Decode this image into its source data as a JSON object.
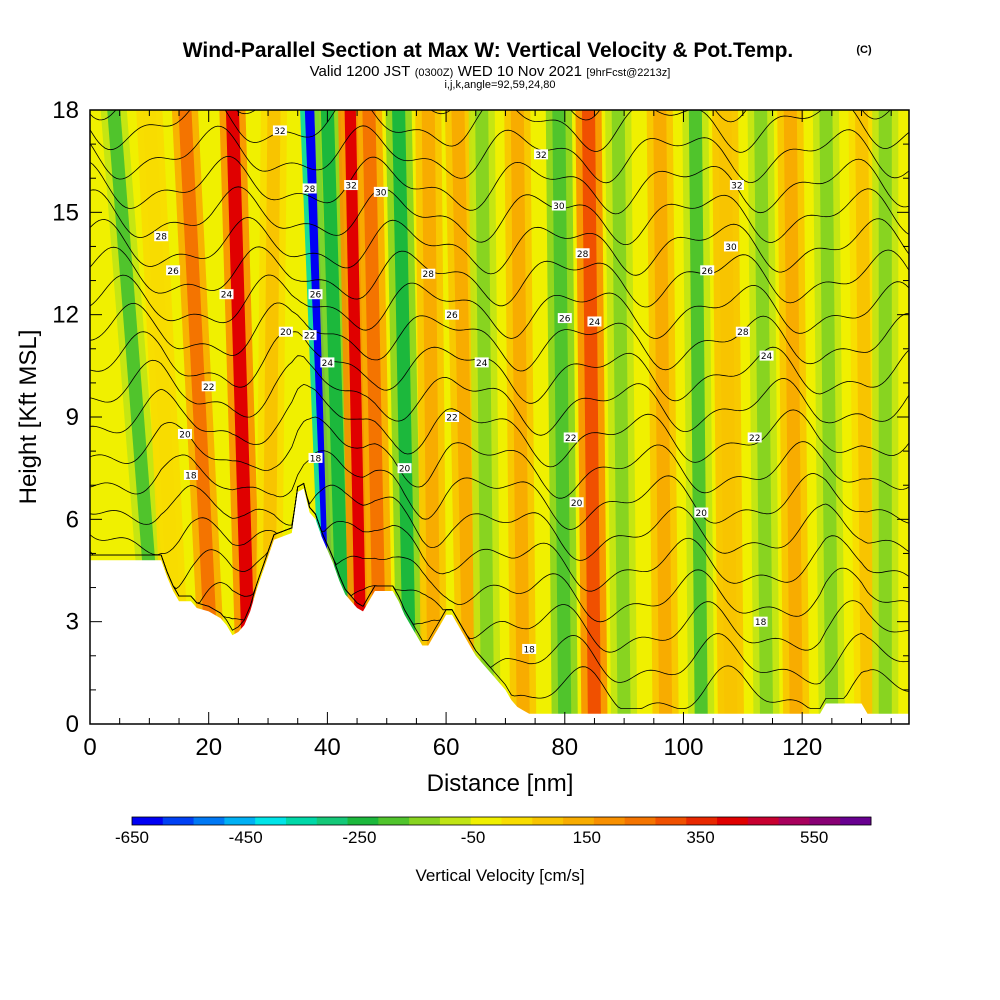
{
  "header": {
    "title": "Wind-Parallel Section at Max W: Vertical Velocity & Pot.Temp.",
    "copyright": "(C)",
    "valid_prefix": "Valid 1200 JST",
    "valid_utc": "(0300Z)",
    "valid_date": "WED 10 Nov 2021",
    "forecast": "[9hrFcst@2213z]",
    "indices": "i,j,k,angle=92,59,24,80"
  },
  "chart_data": {
    "type": "heatmap",
    "xlabel": "Distance [nm]",
    "ylabel": "Height [Kft MSL]",
    "xlim": [
      0,
      138
    ],
    "ylim": [
      0,
      18
    ],
    "x_ticks": [
      "0",
      "20",
      "40",
      "60",
      "80",
      "100",
      "120"
    ],
    "y_ticks": [
      "0",
      "3",
      "6",
      "9",
      "12",
      "15",
      "18"
    ],
    "colorbar": {
      "label": "Vertical Velocity [cm/s]",
      "tick_labels": [
        "-650",
        "-450",
        "-250",
        "-50",
        "150",
        "350",
        "550"
      ],
      "tick_values": [
        -650,
        -450,
        -250,
        -50,
        150,
        350,
        550
      ],
      "range": [
        -650,
        650
      ],
      "colors": [
        "#0000f4",
        "#0040f4",
        "#0078f4",
        "#00b0f4",
        "#00e4e8",
        "#00d8a8",
        "#14c878",
        "#1cb83c",
        "#50c42c",
        "#88d420",
        "#c0e414",
        "#f0f000",
        "#f8dc00",
        "#f8c400",
        "#f8ac00",
        "#f89000",
        "#f47400",
        "#f05000",
        "#e82800",
        "#e00000",
        "#c80030",
        "#a8005c",
        "#880074",
        "#680090"
      ]
    },
    "vertical_velocity_bands": [
      {
        "x_top": 4,
        "x_bottom": 12,
        "w": -180
      },
      {
        "x_top": 10,
        "x_bottom": 15,
        "w": 40
      },
      {
        "x_top": 16,
        "x_bottom": 21,
        "w": 260
      },
      {
        "x_top": 24,
        "x_bottom": 27,
        "w": 380
      },
      {
        "x_top": 31,
        "x_bottom": 30,
        "w": 80
      },
      {
        "x_top": 37,
        "x_bottom": 41,
        "w": -620
      },
      {
        "x_top": 40,
        "x_bottom": 43,
        "w": -250
      },
      {
        "x_top": 44,
        "x_bottom": 46,
        "w": 380
      },
      {
        "x_top": 47,
        "x_bottom": 49,
        "w": 260
      },
      {
        "x_top": 52,
        "x_bottom": 54,
        "w": -230
      },
      {
        "x_top": 57,
        "x_bottom": 58,
        "w": 140
      },
      {
        "x_top": 62,
        "x_bottom": 64,
        "w": 160
      },
      {
        "x_top": 66,
        "x_bottom": 67,
        "w": -140
      },
      {
        "x_top": 72,
        "x_bottom": 73,
        "w": 120
      },
      {
        "x_top": 79,
        "x_bottom": 80,
        "w": -200
      },
      {
        "x_top": 84,
        "x_bottom": 85,
        "w": 320
      },
      {
        "x_top": 89,
        "x_bottom": 90,
        "w": -110
      },
      {
        "x_top": 96,
        "x_bottom": 97,
        "w": 140
      },
      {
        "x_top": 102,
        "x_bottom": 103,
        "w": -170
      },
      {
        "x_top": 107,
        "x_bottom": 108,
        "w": 100
      },
      {
        "x_top": 113,
        "x_bottom": 114,
        "w": -160
      },
      {
        "x_top": 118,
        "x_bottom": 119,
        "w": 130
      },
      {
        "x_top": 124,
        "x_bottom": 125,
        "w": -130
      },
      {
        "x_top": 130,
        "x_bottom": 131,
        "w": 90
      },
      {
        "x_top": 134,
        "x_bottom": 134,
        "w": -120
      }
    ],
    "terrain": [
      [
        0,
        4.8
      ],
      [
        12,
        4.8
      ],
      [
        13,
        4.3
      ],
      [
        14,
        3.9
      ],
      [
        15,
        3.6
      ],
      [
        17,
        3.6
      ],
      [
        18,
        3.4
      ],
      [
        20,
        3.3
      ],
      [
        22,
        3.1
      ],
      [
        23,
        2.9
      ],
      [
        24,
        2.6
      ],
      [
        25,
        2.7
      ],
      [
        26,
        2.9
      ],
      [
        27,
        3.3
      ],
      [
        28,
        3.9
      ],
      [
        29,
        4.4
      ],
      [
        30,
        4.9
      ],
      [
        31,
        5.4
      ],
      [
        34,
        5.6
      ],
      [
        35,
        6.8
      ],
      [
        36,
        6.9
      ],
      [
        37,
        6.2
      ],
      [
        38,
        6.0
      ],
      [
        39,
        5.5
      ],
      [
        40,
        5.1
      ],
      [
        41,
        4.7
      ],
      [
        42,
        4.2
      ],
      [
        43,
        3.8
      ],
      [
        44,
        3.6
      ],
      [
        45,
        3.4
      ],
      [
        46,
        3.3
      ],
      [
        47,
        3.6
      ],
      [
        48,
        3.9
      ],
      [
        51,
        3.9
      ],
      [
        52,
        3.6
      ],
      [
        53,
        3.2
      ],
      [
        54,
        2.9
      ],
      [
        55,
        2.6
      ],
      [
        56,
        2.3
      ],
      [
        57,
        2.3
      ],
      [
        58,
        2.6
      ],
      [
        59,
        2.9
      ],
      [
        60,
        3.2
      ],
      [
        61,
        3.2
      ],
      [
        62,
        2.9
      ],
      [
        63,
        2.6
      ],
      [
        64,
        2.3
      ],
      [
        65,
        2.0
      ],
      [
        66,
        1.8
      ],
      [
        67,
        1.6
      ],
      [
        68,
        1.4
      ],
      [
        69,
        1.2
      ],
      [
        70,
        1.0
      ],
      [
        71,
        0.7
      ],
      [
        72,
        0.5
      ],
      [
        73,
        0.4
      ],
      [
        74,
        0.3
      ],
      [
        123,
        0.3
      ],
      [
        124,
        0.6
      ],
      [
        130,
        0.6
      ],
      [
        131,
        0.3
      ],
      [
        138,
        0.3
      ]
    ],
    "theta_levels": [
      18,
      20,
      22,
      24,
      26,
      28,
      30,
      32
    ],
    "theta_labels": [
      {
        "text": "32",
        "x": 32,
        "y": 17.4
      },
      {
        "text": "32",
        "x": 44,
        "y": 15.8
      },
      {
        "text": "30",
        "x": 49,
        "y": 15.6
      },
      {
        "text": "32",
        "x": 76,
        "y": 16.7
      },
      {
        "text": "30",
        "x": 79,
        "y": 15.2
      },
      {
        "text": "32",
        "x": 109,
        "y": 15.8
      },
      {
        "text": "30",
        "x": 108,
        "y": 14.0
      },
      {
        "text": "28",
        "x": 12,
        "y": 14.3
      },
      {
        "text": "28",
        "x": 37,
        "y": 15.7
      },
      {
        "text": "26",
        "x": 14,
        "y": 13.3
      },
      {
        "text": "24",
        "x": 23,
        "y": 12.6
      },
      {
        "text": "26",
        "x": 38,
        "y": 12.6
      },
      {
        "text": "28",
        "x": 57,
        "y": 13.2
      },
      {
        "text": "28",
        "x": 83,
        "y": 13.8
      },
      {
        "text": "26",
        "x": 104,
        "y": 13.3
      },
      {
        "text": "20",
        "x": 33,
        "y": 11.5
      },
      {
        "text": "22",
        "x": 37,
        "y": 11.4
      },
      {
        "text": "26",
        "x": 61,
        "y": 12.0
      },
      {
        "text": "26",
        "x": 80,
        "y": 11.9
      },
      {
        "text": "24",
        "x": 85,
        "y": 11.8
      },
      {
        "text": "28",
        "x": 110,
        "y": 11.5
      },
      {
        "text": "24",
        "x": 40,
        "y": 10.6
      },
      {
        "text": "24",
        "x": 66,
        "y": 10.6
      },
      {
        "text": "24",
        "x": 114,
        "y": 10.8
      },
      {
        "text": "22",
        "x": 20,
        "y": 9.9
      },
      {
        "text": "22",
        "x": 61,
        "y": 9.0
      },
      {
        "text": "22",
        "x": 81,
        "y": 8.4
      },
      {
        "text": "22",
        "x": 112,
        "y": 8.4
      },
      {
        "text": "20",
        "x": 16,
        "y": 8.5
      },
      {
        "text": "18",
        "x": 38,
        "y": 7.8
      },
      {
        "text": "20",
        "x": 53,
        "y": 7.5
      },
      {
        "text": "18",
        "x": 17,
        "y": 7.3
      },
      {
        "text": "20",
        "x": 82,
        "y": 6.5
      },
      {
        "text": "20",
        "x": 103,
        "y": 6.2
      },
      {
        "text": "18",
        "x": 113,
        "y": 3.0
      },
      {
        "text": "18",
        "x": 74,
        "y": 2.2
      }
    ]
  }
}
